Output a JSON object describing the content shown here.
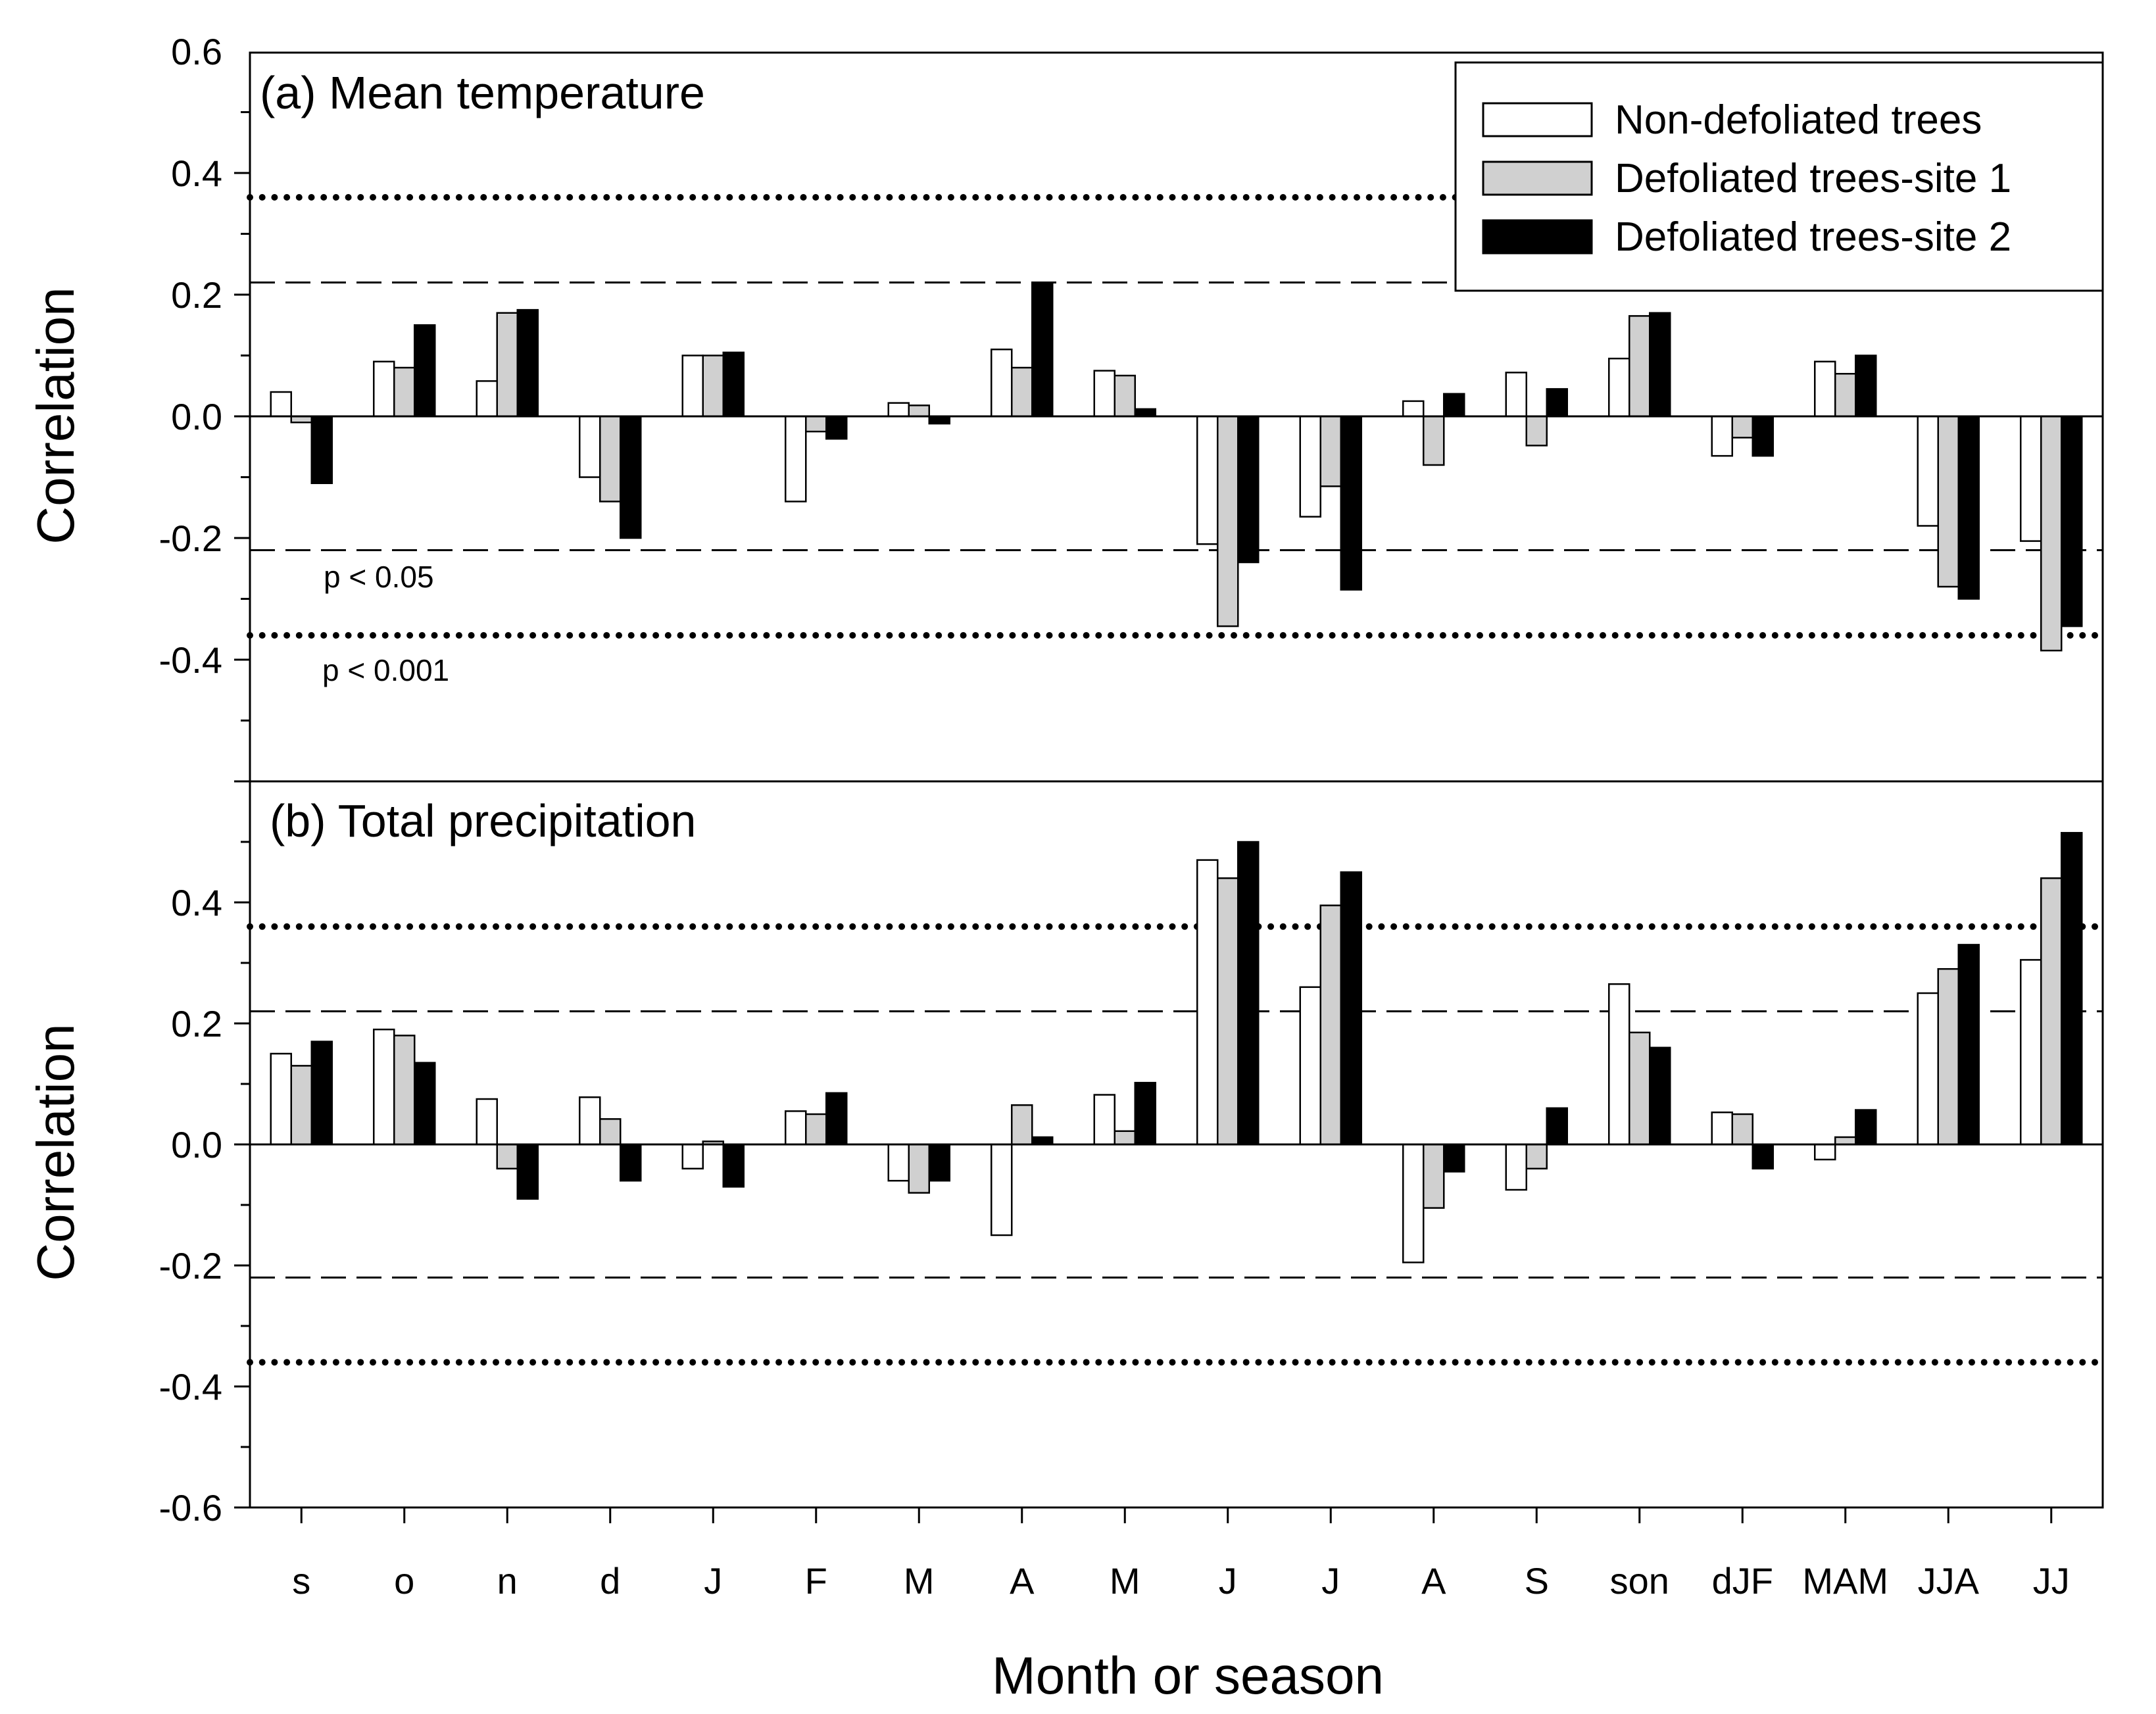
{
  "chart_data": {
    "type": "bar",
    "categories": [
      "s",
      "o",
      "n",
      "d",
      "J",
      "F",
      "M",
      "A",
      "M",
      "J",
      "J",
      "A",
      "S",
      "son",
      "dJF",
      "MAM",
      "JJA",
      "JJ"
    ],
    "xlabel": "Month or season",
    "legend": {
      "placement": "top-right",
      "entries": [
        "Non-defoliated trees",
        "Defoliated trees-site 1",
        "Defoliated trees-site 2"
      ]
    },
    "series_colors": [
      "#ffffff",
      "#d0d0d0",
      "#000000"
    ],
    "significance": {
      "p05": {
        "label": "p < 0.05",
        "value": 0.22
      },
      "p001": {
        "label": "p < 0.001",
        "value": 0.36
      }
    },
    "panels": [
      {
        "title": "(a) Mean temperature",
        "ylabel": "Correlation",
        "ylim": [
          -0.6,
          0.6
        ],
        "y_tick_labels": [
          "0.6",
          "0.4",
          "0.2",
          "0.0",
          "-0.2",
          "-0.4"
        ],
        "series": [
          {
            "name": "Non-defoliated trees",
            "values": [
              0.04,
              0.09,
              0.058,
              -0.1,
              0.1,
              -0.14,
              0.022,
              0.11,
              0.075,
              -0.21,
              -0.165,
              0.025,
              0.072,
              0.095,
              -0.065,
              0.09,
              -0.18,
              -0.205
            ]
          },
          {
            "name": "Defoliated trees-site 1",
            "values": [
              -0.01,
              0.08,
              0.17,
              -0.14,
              0.1,
              -0.025,
              0.018,
              0.08,
              0.067,
              -0.345,
              -0.115,
              -0.08,
              -0.048,
              0.165,
              -0.035,
              0.07,
              -0.28,
              -0.385
            ]
          },
          {
            "name": "Defoliated trees-site 2",
            "values": [
              -0.11,
              0.15,
              0.175,
              -0.2,
              0.105,
              -0.037,
              -0.012,
              0.22,
              0.012,
              -0.24,
              -0.285,
              0.037,
              0.045,
              0.17,
              -0.065,
              0.1,
              -0.3,
              -0.345
            ]
          }
        ]
      },
      {
        "title": "(b) Total precipitation",
        "ylabel": "Correlation",
        "ylim": [
          -0.6,
          0.6
        ],
        "y_tick_labels": [
          "0.4",
          "0.2",
          "0.0",
          "-0.2",
          "-0.4",
          "-0.6"
        ],
        "series": [
          {
            "name": "Non-defoliated trees",
            "values": [
              0.15,
              0.19,
              0.075,
              0.078,
              -0.04,
              0.055,
              -0.06,
              -0.15,
              0.082,
              0.47,
              0.26,
              -0.195,
              -0.075,
              0.265,
              0.053,
              -0.025,
              0.25,
              0.305
            ]
          },
          {
            "name": "Defoliated trees-site 1",
            "values": [
              0.13,
              0.18,
              -0.04,
              0.042,
              0.005,
              0.05,
              -0.08,
              0.065,
              0.022,
              0.44,
              0.395,
              -0.105,
              -0.04,
              0.185,
              0.05,
              0.012,
              0.29,
              0.44
            ]
          },
          {
            "name": "Defoliated trees-site 2",
            "values": [
              0.17,
              0.135,
              -0.09,
              -0.06,
              -0.07,
              0.085,
              -0.06,
              0.012,
              0.102,
              0.5,
              0.45,
              -0.045,
              0.06,
              0.16,
              -0.04,
              0.057,
              0.33,
              0.515
            ]
          }
        ]
      }
    ]
  }
}
